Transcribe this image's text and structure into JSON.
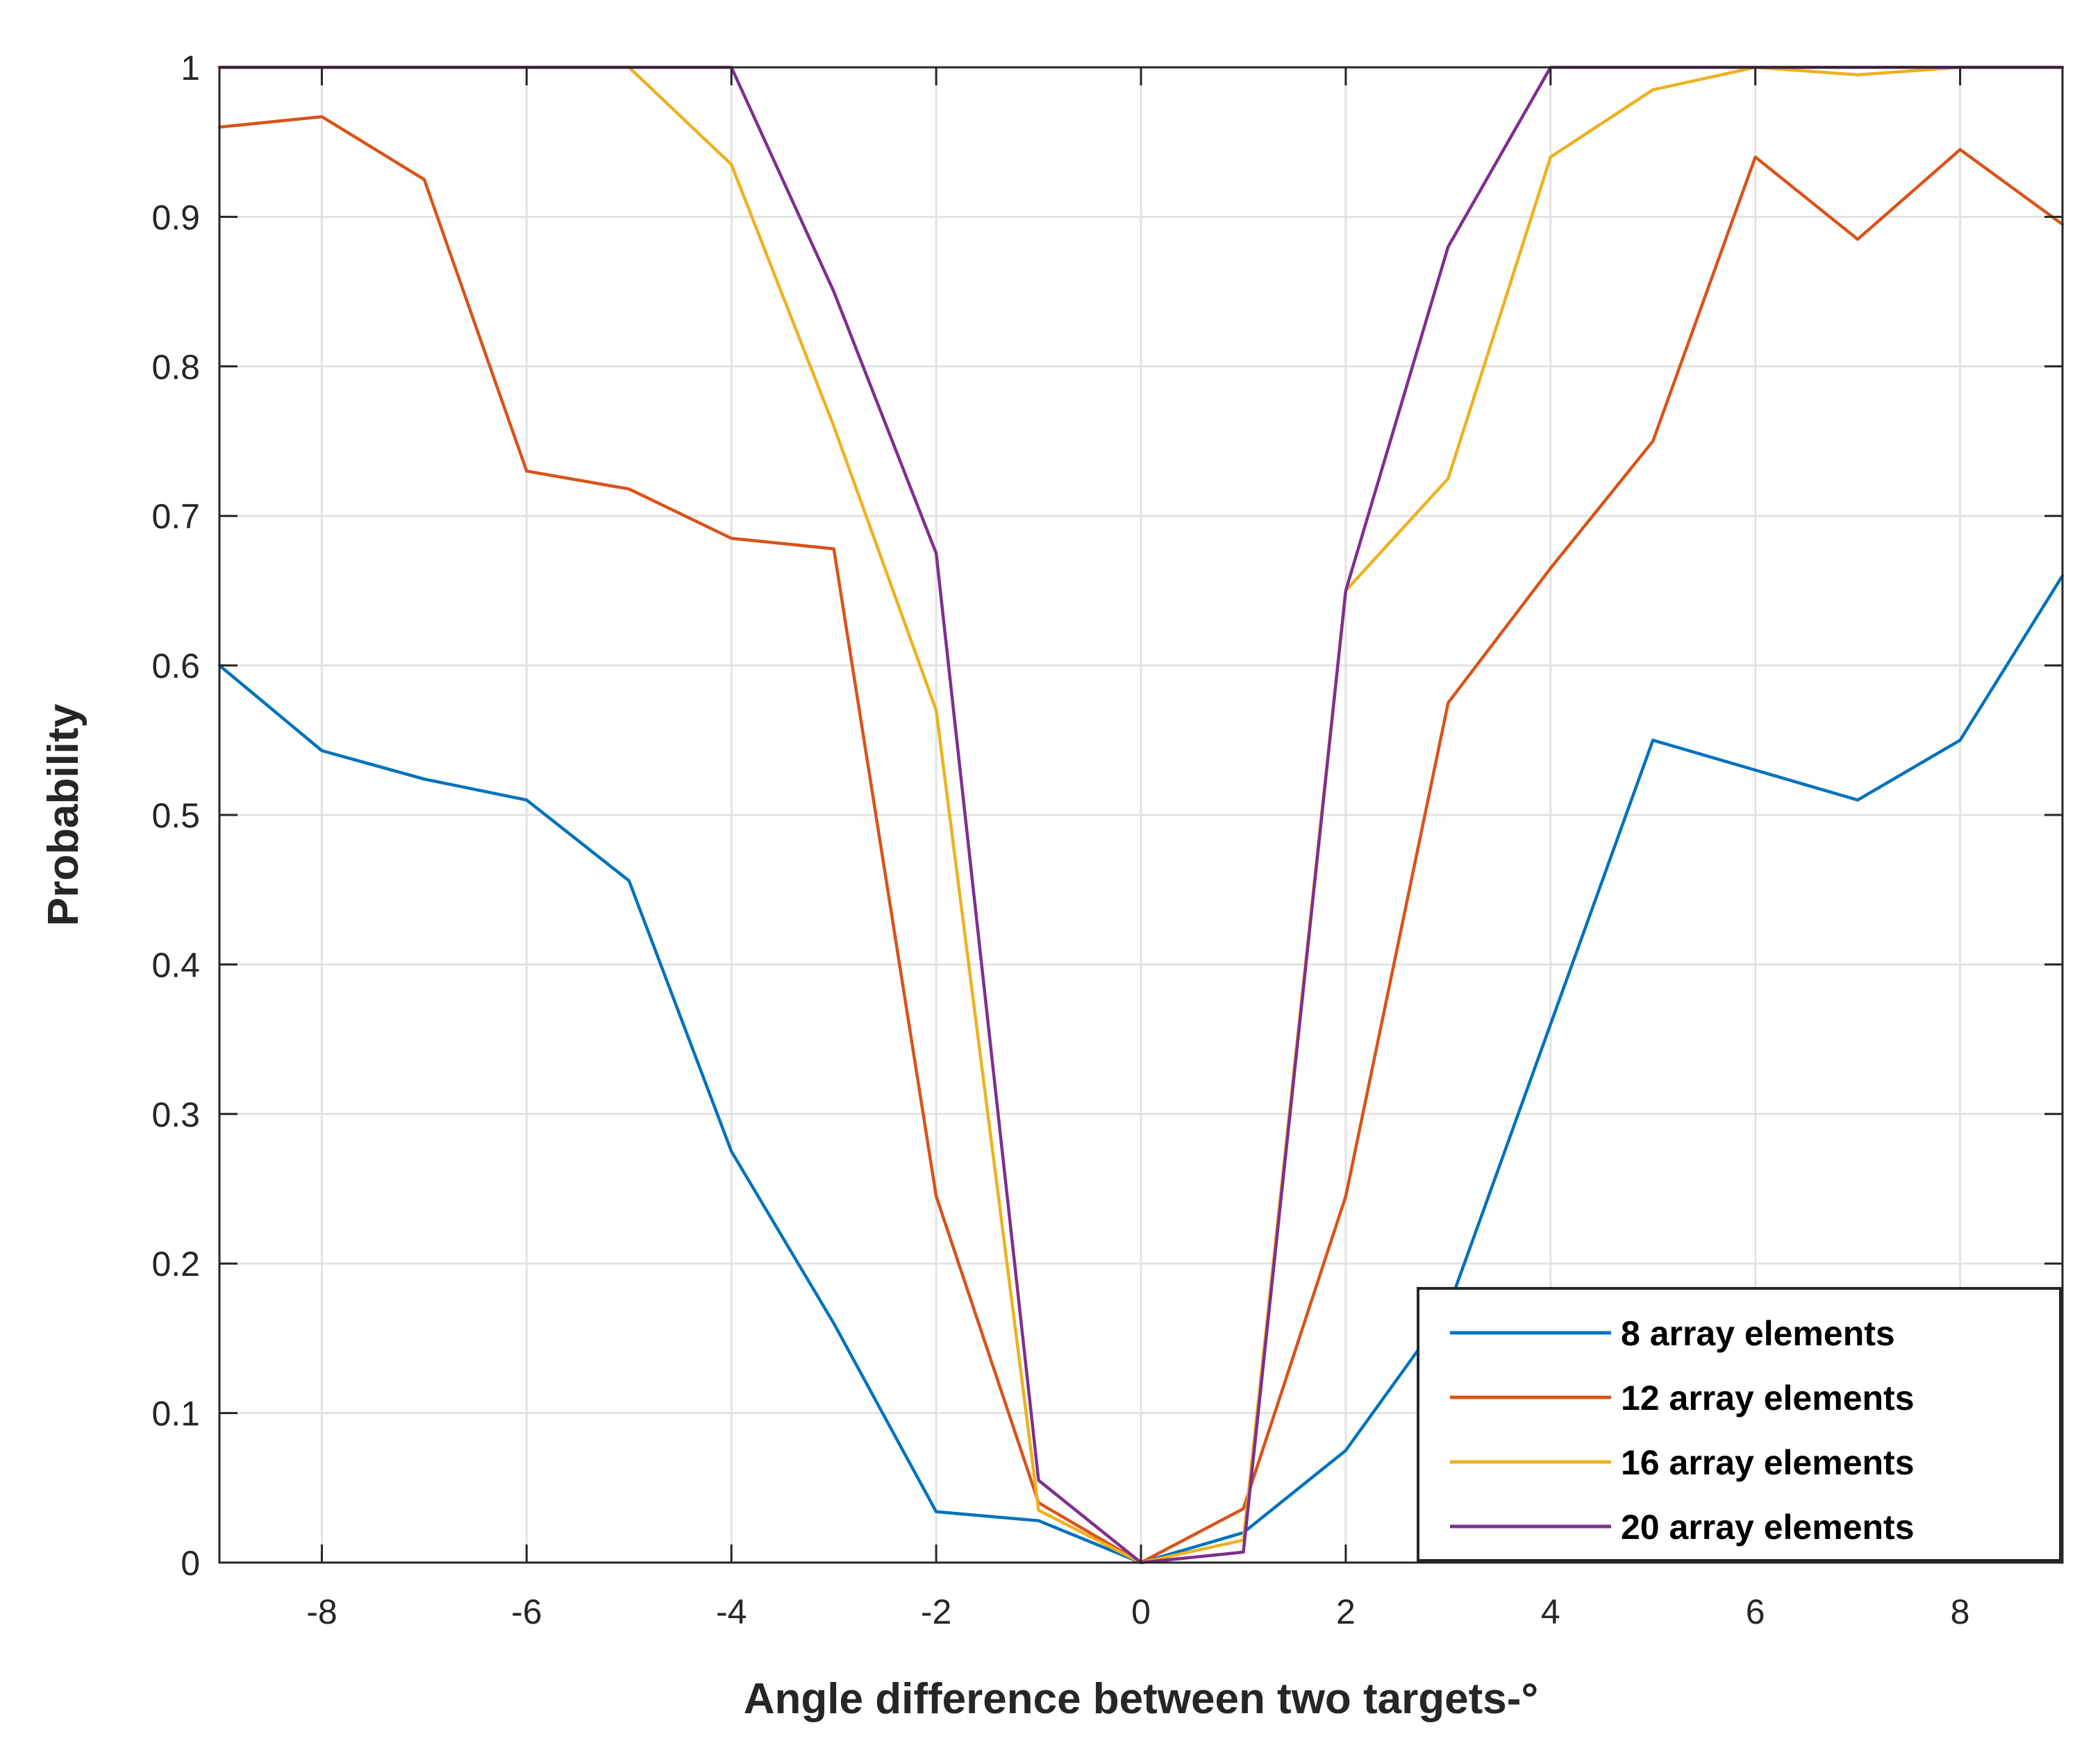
{
  "chart_data": {
    "type": "line",
    "title": "",
    "xlabel": "Angle difference between two targets-°",
    "ylabel": "Probability",
    "xlim": [
      -9,
      9
    ],
    "ylim": [
      0,
      1
    ],
    "grid": true,
    "legend_position": "bottom-right",
    "x": [
      -9,
      -8,
      -7,
      -6,
      -5,
      -4,
      -3,
      -2,
      -1,
      0,
      1,
      2,
      3,
      4,
      5,
      6,
      7,
      8,
      9
    ],
    "xticks": [
      {
        "value": -8,
        "label": "-8"
      },
      {
        "value": -6,
        "label": "-6"
      },
      {
        "value": -4,
        "label": "-4"
      },
      {
        "value": -2,
        "label": "-2"
      },
      {
        "value": 0,
        "label": "0"
      },
      {
        "value": 2,
        "label": "2"
      },
      {
        "value": 4,
        "label": "4"
      },
      {
        "value": 6,
        "label": "6"
      },
      {
        "value": 8,
        "label": "8"
      }
    ],
    "yticks": [
      {
        "value": 0,
        "label": "0"
      },
      {
        "value": 0.1,
        "label": "0.1"
      },
      {
        "value": 0.2,
        "label": "0.2"
      },
      {
        "value": 0.3,
        "label": "0.3"
      },
      {
        "value": 0.4,
        "label": "0.4"
      },
      {
        "value": 0.5,
        "label": "0.5"
      },
      {
        "value": 0.6,
        "label": "0.6"
      },
      {
        "value": 0.7,
        "label": "0.7"
      },
      {
        "value": 0.8,
        "label": "0.8"
      },
      {
        "value": 0.9,
        "label": "0.9"
      },
      {
        "value": 1,
        "label": "1"
      }
    ],
    "series": [
      {
        "name": "8 array elements",
        "color": "#0072BD",
        "values": [
          0.6,
          0.543,
          0.524,
          0.51,
          0.456,
          0.275,
          0.16,
          0.034,
          0.028,
          0.0,
          0.02,
          0.075,
          0.17,
          0.36,
          0.55,
          0.53,
          0.51,
          0.55,
          0.66
        ]
      },
      {
        "name": "12 array elements",
        "color": "#D95319",
        "values": [
          0.96,
          0.967,
          0.925,
          0.73,
          0.718,
          0.685,
          0.678,
          0.245,
          0.04,
          0.0,
          0.036,
          0.245,
          0.575,
          0.665,
          0.75,
          0.94,
          0.885,
          0.945,
          0.895
        ]
      },
      {
        "name": "16 array elements",
        "color": "#EDB120",
        "values": [
          1.0,
          1.0,
          1.0,
          1.0,
          1.0,
          0.935,
          0.76,
          0.57,
          0.035,
          0.0,
          0.015,
          0.65,
          0.725,
          0.94,
          0.985,
          1.0,
          0.995,
          1.0,
          1.0
        ]
      },
      {
        "name": "20 array elements",
        "color": "#7E2F8E",
        "values": [
          1.0,
          1.0,
          1.0,
          1.0,
          1.0,
          1.0,
          0.85,
          0.675,
          0.055,
          0.0,
          0.007,
          0.65,
          0.88,
          1.0,
          1.0,
          1.0,
          1.0,
          1.0,
          1.0
        ]
      }
    ]
  }
}
